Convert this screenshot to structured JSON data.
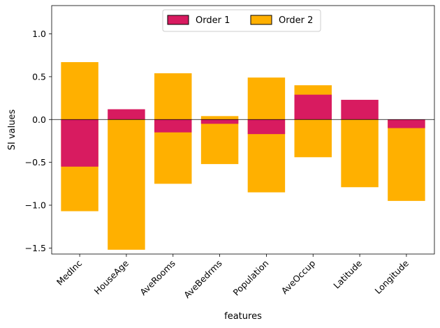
{
  "chart_data": {
    "type": "bar",
    "xlabel": "features",
    "ylabel": "SI values",
    "ylim": [
      -1.57,
      1.33
    ],
    "yticks": [
      1.0,
      0.5,
      0.0,
      -0.5,
      -1.0,
      -1.5
    ],
    "ytick_labels": [
      "1.0",
      "0.5",
      "0.0",
      "−0.5",
      "−1.0",
      "−1.5"
    ],
    "categories": [
      "MedInc",
      "HouseAge",
      "AveRooms",
      "AveBedrms",
      "Population",
      "AveOccup",
      "Latitude",
      "Longitude"
    ],
    "legend_position": "top-center",
    "zero_line": true,
    "grid": false,
    "series": [
      {
        "name": "Order 1",
        "color": "#d81b60",
        "values": [
          -0.55,
          0.12,
          -0.15,
          -0.05,
          -0.17,
          0.29,
          0.23,
          -0.1
        ]
      },
      {
        "name": "Order 2",
        "color": "#ffb000",
        "values": [
          [
            -1.07,
            0.67
          ],
          [
            -1.52,
            0.0
          ],
          [
            -0.75,
            0.54
          ],
          [
            -0.52,
            0.04
          ],
          [
            -0.85,
            0.49
          ],
          [
            -0.44,
            0.4
          ],
          [
            -0.79,
            0.0
          ],
          [
            -0.95,
            0.0
          ]
        ]
      }
    ]
  }
}
